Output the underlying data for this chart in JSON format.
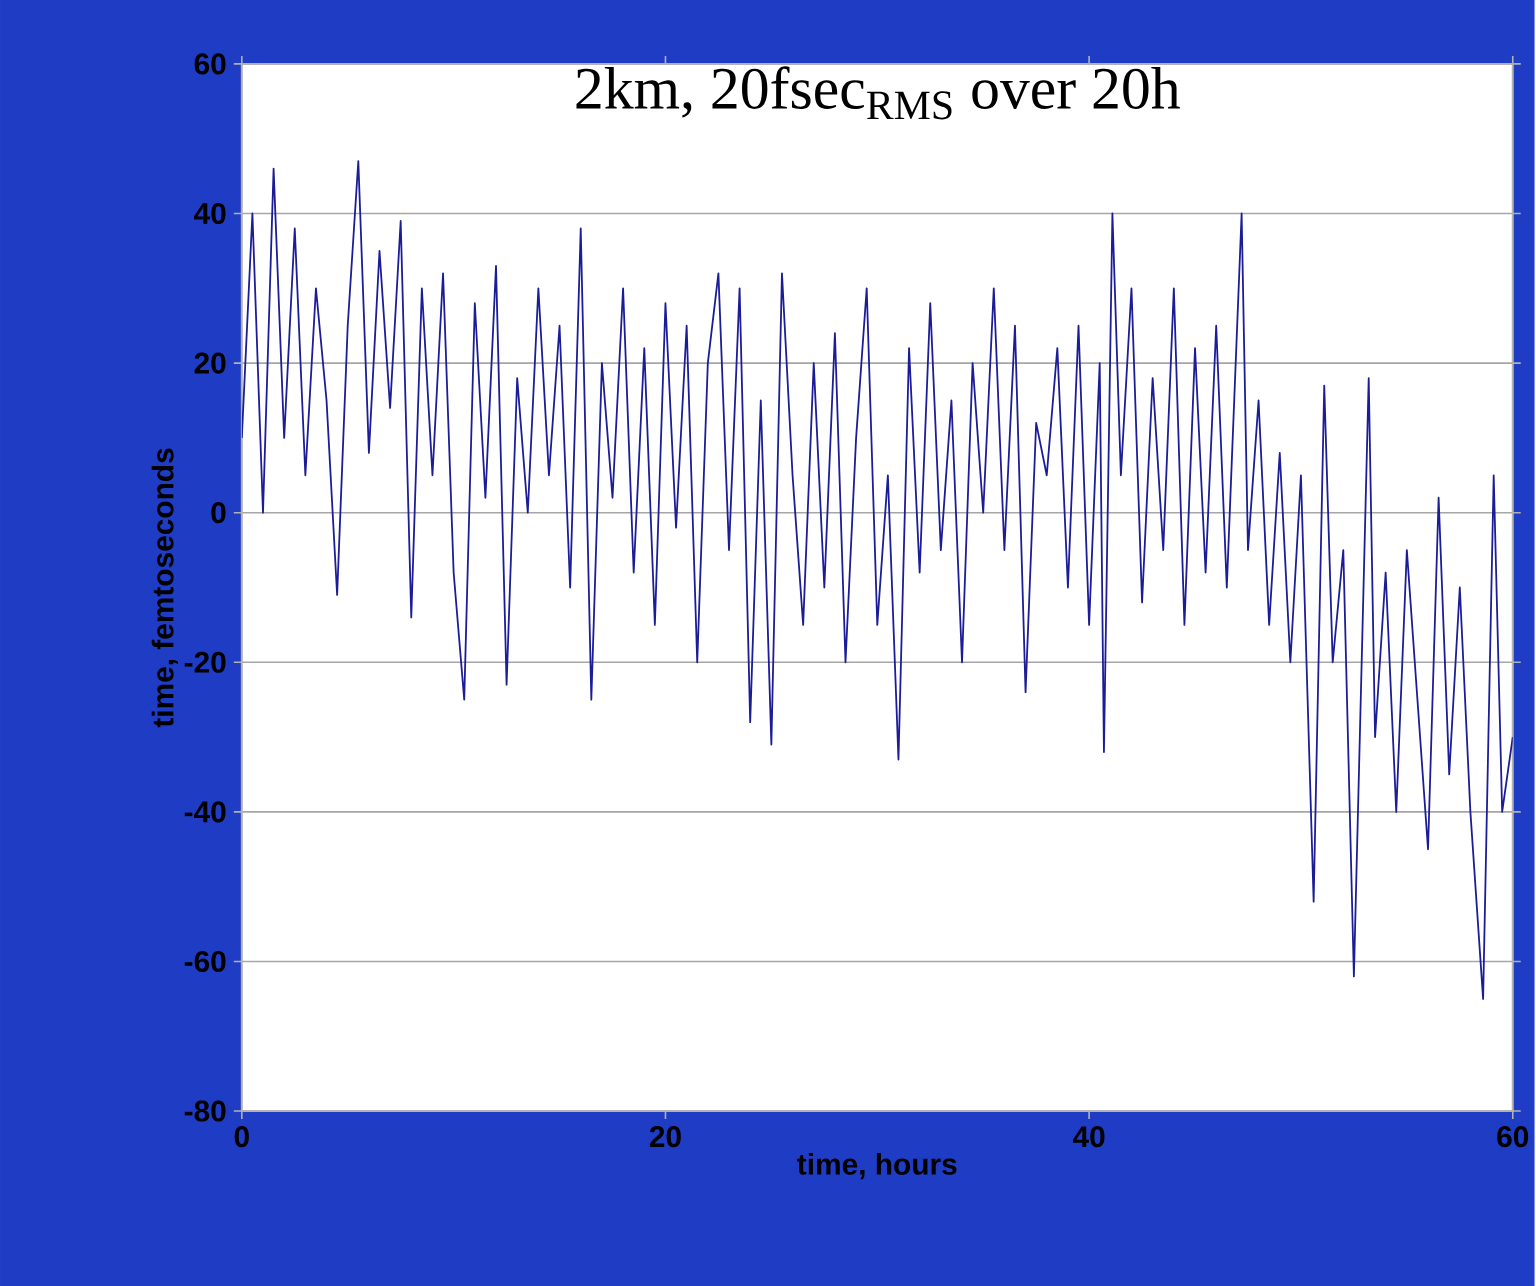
{
  "chart_data": {
    "type": "line",
    "title": "2km, 20fsec$_{RMS}$ over 20h",
    "xlabel": "time, hours",
    "ylabel": "time, femtoseconds",
    "xlim": [
      0,
      60
    ],
    "ylim": [
      -80,
      60
    ],
    "xticks": [
      0,
      20,
      40,
      60
    ],
    "yticks": [
      -80,
      -60,
      -40,
      -20,
      0,
      20,
      40,
      60
    ],
    "grid": "y",
    "marker": "none",
    "line_style": "solid",
    "series": [
      {
        "color": "#1c1c99",
        "x": [
          0,
          0.5,
          1,
          1.5,
          2,
          2.5,
          3,
          3.5,
          4,
          4.5,
          5,
          5.5,
          6,
          6.5,
          7,
          7.5,
          8,
          8.5,
          9,
          9.5,
          10,
          10.5,
          11,
          11.5,
          12,
          12.5,
          13,
          13.5,
          14,
          14.5,
          15,
          15.5,
          16,
          16.5,
          17,
          17.5,
          18,
          18.5,
          19,
          19.5,
          20,
          20.5,
          21,
          21.5,
          22,
          22.5,
          23,
          23.5,
          24,
          24.5,
          25,
          25.5,
          26,
          26.5,
          27,
          27.5,
          28,
          28.5,
          29,
          29.5,
          30,
          30.5,
          31,
          31.5,
          32,
          32.5,
          33,
          33.5,
          34,
          34.5,
          35,
          35.5,
          36,
          36.5,
          37,
          37.5,
          38,
          38.5,
          39,
          39.5,
          40,
          40.5,
          40.7,
          41.1,
          41.5,
          42,
          42.5,
          43,
          43.5,
          44,
          44.5,
          45,
          45.5,
          46,
          46.5,
          47.2,
          47.5,
          48,
          48.5,
          49,
          49.5,
          50,
          50.6,
          51.1,
          51.5,
          52,
          52.5,
          53.2,
          53.5,
          54,
          54.5,
          55,
          55.5,
          56,
          56.5,
          57,
          57.5,
          58,
          58.6,
          59.1,
          59.5,
          60
        ],
        "values": [
          10,
          40,
          0,
          46,
          10,
          38,
          5,
          30,
          15,
          -11,
          25,
          47,
          8,
          35,
          14,
          39,
          -14,
          30,
          5,
          32,
          -8,
          -25,
          28,
          2,
          33,
          -23,
          18,
          0,
          30,
          5,
          25,
          -10,
          38,
          -25,
          20,
          2,
          30,
          -8,
          22,
          -15,
          28,
          -2,
          25,
          -20,
          20,
          32,
          -5,
          30,
          -28,
          15,
          -31,
          32,
          5,
          -15,
          20,
          -10,
          24,
          -20,
          10,
          30,
          -15,
          5,
          -33,
          22,
          -8,
          28,
          -5,
          15,
          -20,
          20,
          0,
          30,
          -5,
          25,
          -24,
          12,
          5,
          22,
          -10,
          25,
          -15,
          20,
          -32,
          40,
          5,
          30,
          -12,
          18,
          -5,
          30,
          -15,
          22,
          -8,
          25,
          -10,
          40,
          -5,
          15,
          -15,
          8,
          -20,
          5,
          -52,
          17,
          -20,
          -5,
          -62,
          18,
          -30,
          -8,
          -40,
          -5,
          -25,
          -45,
          2,
          -35,
          -10,
          -40,
          -65,
          5,
          -40,
          -30
        ]
      }
    ]
  }
}
